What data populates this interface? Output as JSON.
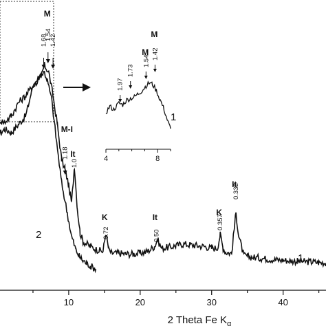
{
  "chart_data": {
    "type": "line",
    "title": "",
    "xlabel": "2 Theta Fe K",
    "xlabel_subscript": "α",
    "ylabel": "",
    "xlim": [
      0,
      46
    ],
    "x_ticks": [
      10,
      20,
      30,
      40
    ],
    "grid": false,
    "series": [
      {
        "name": "1",
        "x": [
          0,
          1,
          2,
          3,
          4,
          5,
          6,
          6.6,
          7.2,
          7.8,
          8.4,
          9,
          9.6,
          10,
          10.4,
          10.8,
          11.2,
          11.6,
          12,
          13,
          14,
          14.8,
          15.2,
          15.6,
          16,
          17,
          18,
          19,
          20,
          21,
          22,
          22.4,
          23,
          24,
          25,
          26,
          27,
          28,
          29,
          30,
          30.8,
          31.2,
          31.6,
          32,
          32.8,
          33.2,
          33.4,
          33.8,
          34.5,
          35,
          36,
          37,
          38,
          39,
          40,
          41,
          42,
          43,
          44,
          45,
          46
        ],
        "y": [
          88,
          92,
          90,
          95,
          100,
          118,
          122,
          130,
          126,
          112,
          95,
          74,
          66,
          58,
          48,
          70,
          45,
          30,
          25,
          22,
          20,
          19,
          30,
          20,
          18,
          18,
          17.5,
          17.5,
          18,
          19,
          22,
          26,
          21,
          21.5,
          22.5,
          23.5,
          23,
          22.5,
          22,
          21,
          21,
          29,
          21,
          18.5,
          18,
          34,
          42,
          28,
          16.5,
          16,
          15.5,
          15,
          14.5,
          14,
          13.8,
          13.5,
          13.2,
          13,
          12.8,
          12.5,
          12.2
        ]
      },
      {
        "name": "2",
        "x": [
          0,
          1,
          2,
          3,
          4,
          5,
          6,
          6.6,
          7,
          7.6,
          8.2,
          9,
          9.8,
          10.4,
          11,
          11.5,
          12,
          12.5,
          13,
          13.8
        ],
        "y": [
          98,
          96,
          100,
          108,
          112,
          118,
          124,
          126,
          121,
          110,
          88,
          60,
          42,
          28,
          20,
          16,
          13.5,
          12,
          10.5,
          8.5
        ]
      }
    ],
    "annotations": [
      {
        "phase": "M",
        "d": "1.68",
        "x": 6.5
      },
      {
        "phase": "M",
        "d": "1.54",
        "x": 7.1
      },
      {
        "phase": "M",
        "d": "1.42",
        "x": 7.8
      },
      {
        "phase": "M-I",
        "d": "1.18",
        "x": 9.5
      },
      {
        "phase": "It",
        "d": "1.0",
        "x": 10.8
      },
      {
        "phase": "K",
        "d": "0.72",
        "x": 15.2
      },
      {
        "phase": "It",
        "d": "0.50",
        "x": 22.3
      },
      {
        "phase": "K",
        "d": "0.357",
        "x": 31.2
      },
      {
        "phase": "It",
        "d": "0.332",
        "x": 33.4
      }
    ],
    "inset": {
      "series_name": "1",
      "xlim": [
        4,
        9
      ],
      "x_ticks": [
        4,
        8
      ],
      "x": [
        4,
        4.3,
        4.6,
        5,
        5.3,
        5.6,
        5.9,
        6.2,
        6.5,
        6.8,
        7.1,
        7.4,
        7.6,
        7.9,
        8.2,
        8.5,
        8.8,
        9
      ],
      "y": [
        10,
        12,
        11,
        13,
        12.5,
        14,
        14.5,
        15,
        16,
        17,
        18.5,
        19.5,
        19,
        17,
        14,
        11,
        7,
        5
      ],
      "annotations": [
        {
          "phase": "",
          "d": "1.97",
          "x": 5.1
        },
        {
          "phase": "",
          "d": "1.73",
          "x": 5.9
        },
        {
          "phase": "M",
          "d": "1.54",
          "x": 7.1
        },
        {
          "phase": "M",
          "d": "1.42",
          "x": 7.8
        }
      ]
    }
  }
}
